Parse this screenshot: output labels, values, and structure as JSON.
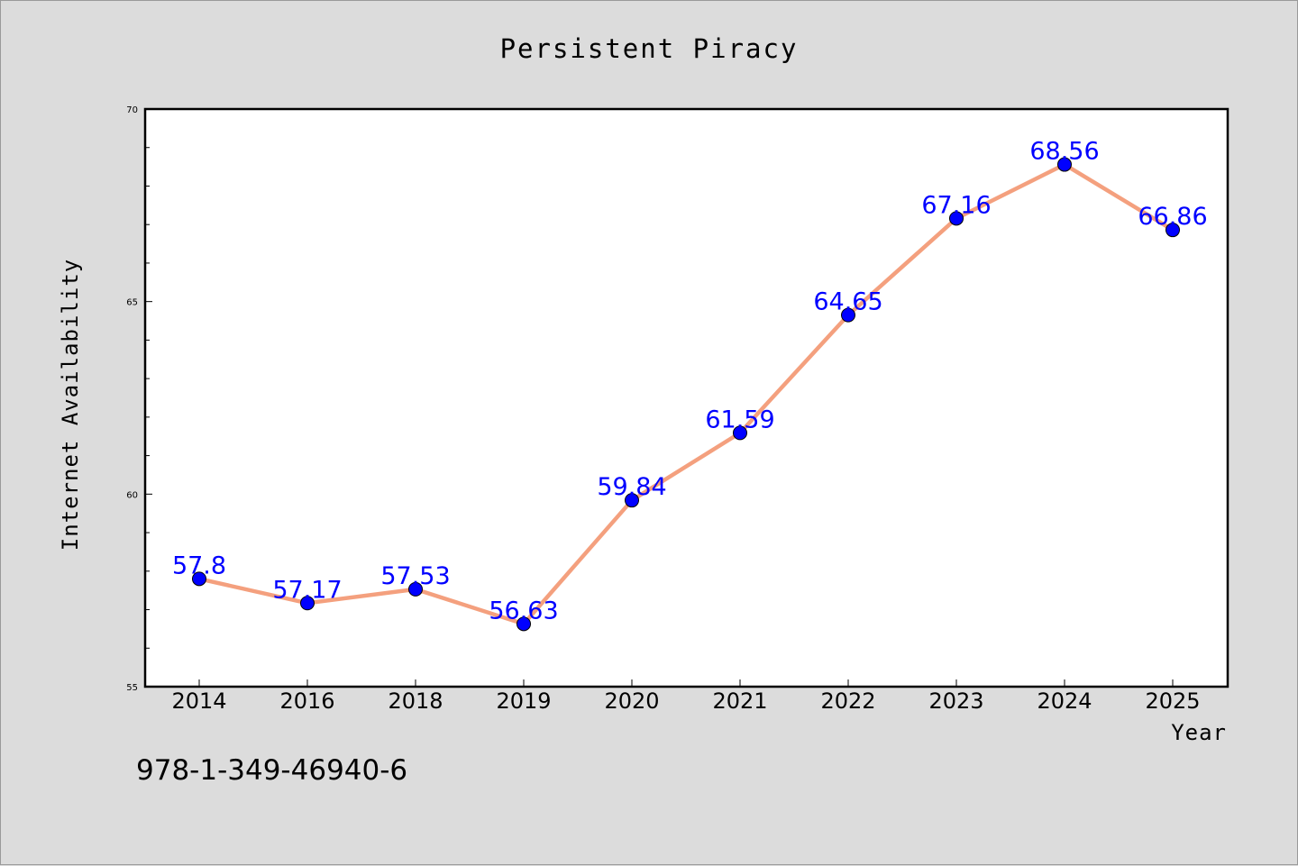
{
  "chart_data": {
    "type": "line",
    "title": "Persistent Piracy",
    "xlabel": "Year",
    "ylabel": "Internet Availability",
    "categories": [
      "2014",
      "2016",
      "2018",
      "2019",
      "2020",
      "2021",
      "2022",
      "2023",
      "2024",
      "2025"
    ],
    "series": [
      {
        "values": [
          57.8,
          57.17,
          57.53,
          56.63,
          59.84,
          61.59,
          64.65,
          67.16,
          68.56,
          66.86
        ],
        "data_labels": [
          "57.8",
          "57.17",
          "57.53",
          "56.63",
          "59.84",
          "61.59",
          "64.65",
          "67.16",
          "68.56",
          "66.86"
        ],
        "line_color": "#f4a07e",
        "marker_color": "#0000ff"
      }
    ],
    "ylim": [
      55,
      70
    ],
    "yticks": [
      "55",
      "60",
      "65",
      "70"
    ],
    "grid": false,
    "legend": "none"
  },
  "footer": {
    "text": "978-1-349-46940-6"
  },
  "colors": {
    "background": "#dcdcdc",
    "plot_background": "#ffffff",
    "label_color": "#0000ff"
  }
}
